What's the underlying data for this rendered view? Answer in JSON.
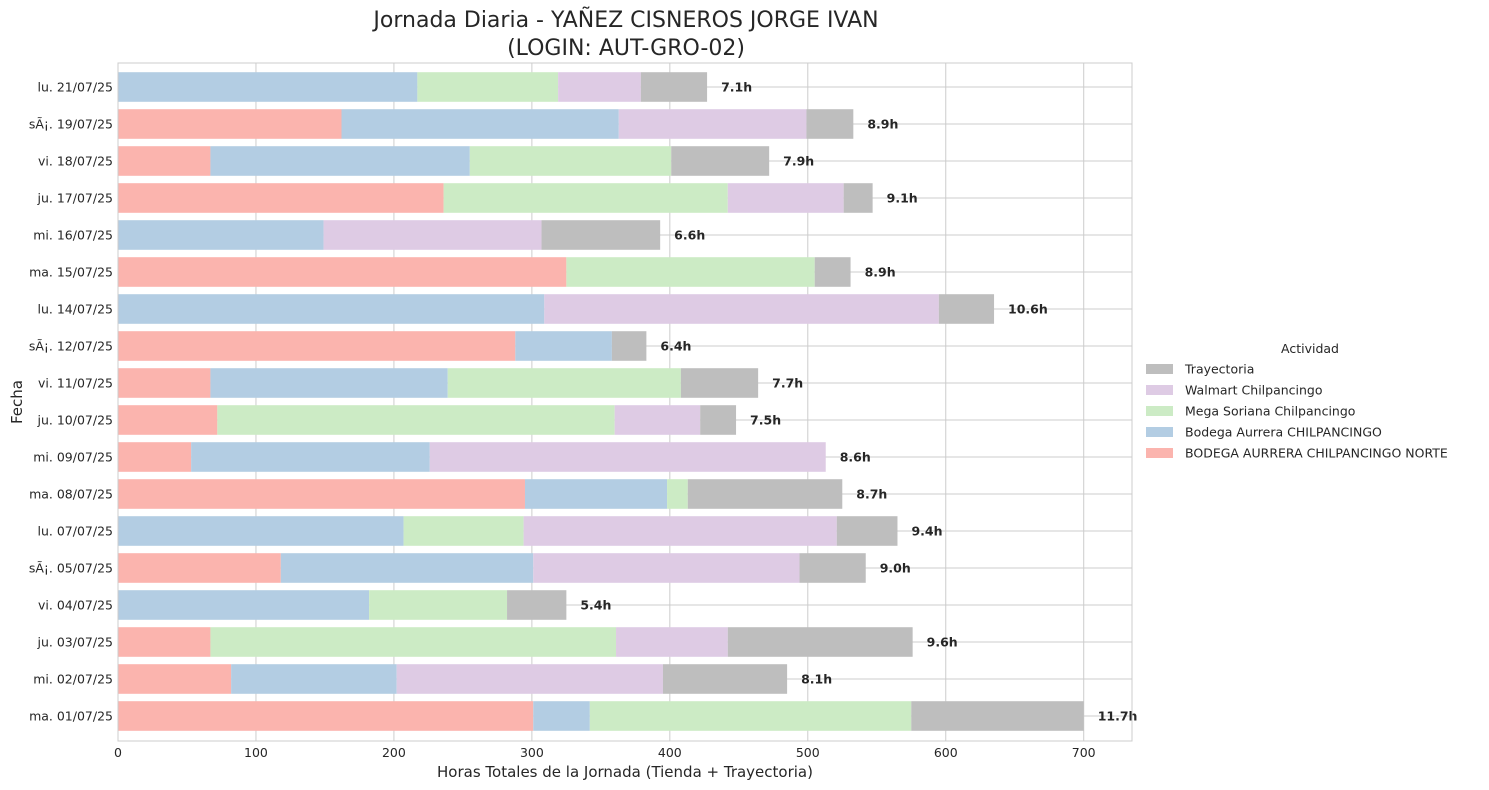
{
  "chart_data": {
    "type": "bar",
    "orientation": "horizontal",
    "stacked": true,
    "title_line1": "Jornada Diaria - YAÑEZ CISNEROS JORGE IVAN",
    "title_line2": "(LOGIN: AUT-GRO-02)",
    "xlabel": "Horas Totales de la Jornada (Tienda + Trayectoria)",
    "ylabel": "Fecha",
    "xlim": [
      0,
      735
    ],
    "xticks": [
      0,
      100,
      200,
      300,
      400,
      500,
      600,
      700
    ],
    "grid": true,
    "legend_title": "Actividad",
    "legend_position": "center-right",
    "legend_order": [
      "Trayectoria",
      "Walmart Chilpancingo",
      "Mega Soriana Chilpancingo",
      "Bodega Aurrera CHILPANCINGO",
      "BODEGA AURRERA CHILPANCINGO NORTE"
    ],
    "colors": {
      "BODEGA AURRERA CHILPANCINGO NORTE": "#fbb4ae",
      "Bodega Aurrera CHILPANCINGO": "#b3cde3",
      "Mega Soriana Chilpancingo": "#ccebc5",
      "Walmart Chilpancingo": "#decbe4",
      "Trayectoria": "#bebebe"
    },
    "categories": [
      "lu. 21/07/25",
      "sÃ¡. 19/07/25",
      "vi. 18/07/25",
      "ju. 17/07/25",
      "mi. 16/07/25",
      "ma. 15/07/25",
      "lu. 14/07/25",
      "sÃ¡. 12/07/25",
      "vi. 11/07/25",
      "ju. 10/07/25",
      "mi. 09/07/25",
      "ma. 08/07/25",
      "lu. 07/07/25",
      "sÃ¡. 05/07/25",
      "vi. 04/07/25",
      "ju. 03/07/25",
      "mi. 02/07/25",
      "ma. 01/07/25"
    ],
    "series": [
      {
        "name": "BODEGA AURRERA CHILPANCINGO NORTE",
        "values": [
          0,
          162,
          67,
          236,
          0,
          325,
          0,
          288,
          67,
          72,
          53,
          295,
          0,
          118,
          0,
          67,
          82,
          301
        ]
      },
      {
        "name": "Bodega Aurrera CHILPANCINGO",
        "values": [
          217,
          201,
          188,
          0,
          149,
          0,
          309,
          70,
          172,
          0,
          173,
          103,
          207,
          183,
          182,
          0,
          120,
          41
        ]
      },
      {
        "name": "Mega Soriana Chilpancingo",
        "values": [
          102,
          0,
          146,
          206,
          0,
          180,
          0,
          0,
          169,
          288,
          0,
          15,
          87,
          0,
          100,
          294,
          0,
          233
        ]
      },
      {
        "name": "Walmart Chilpancingo",
        "values": [
          60,
          136,
          0,
          84,
          158,
          0,
          286,
          0,
          0,
          62,
          287,
          0,
          227,
          193,
          0,
          81,
          193,
          0
        ]
      },
      {
        "name": "Trayectoria",
        "values": [
          48,
          34,
          71,
          21,
          86,
          26,
          40,
          25,
          56,
          26,
          0,
          112,
          44,
          48,
          43,
          134,
          90,
          125
        ]
      }
    ],
    "total_labels": [
      "7.1h",
      "8.9h",
      "7.9h",
      "9.1h",
      "6.6h",
      "8.9h",
      "10.6h",
      "6.4h",
      "7.7h",
      "7.5h",
      "8.6h",
      "8.7h",
      "9.4h",
      "9.0h",
      "5.4h",
      "9.6h",
      "8.1h",
      "11.7h"
    ]
  }
}
